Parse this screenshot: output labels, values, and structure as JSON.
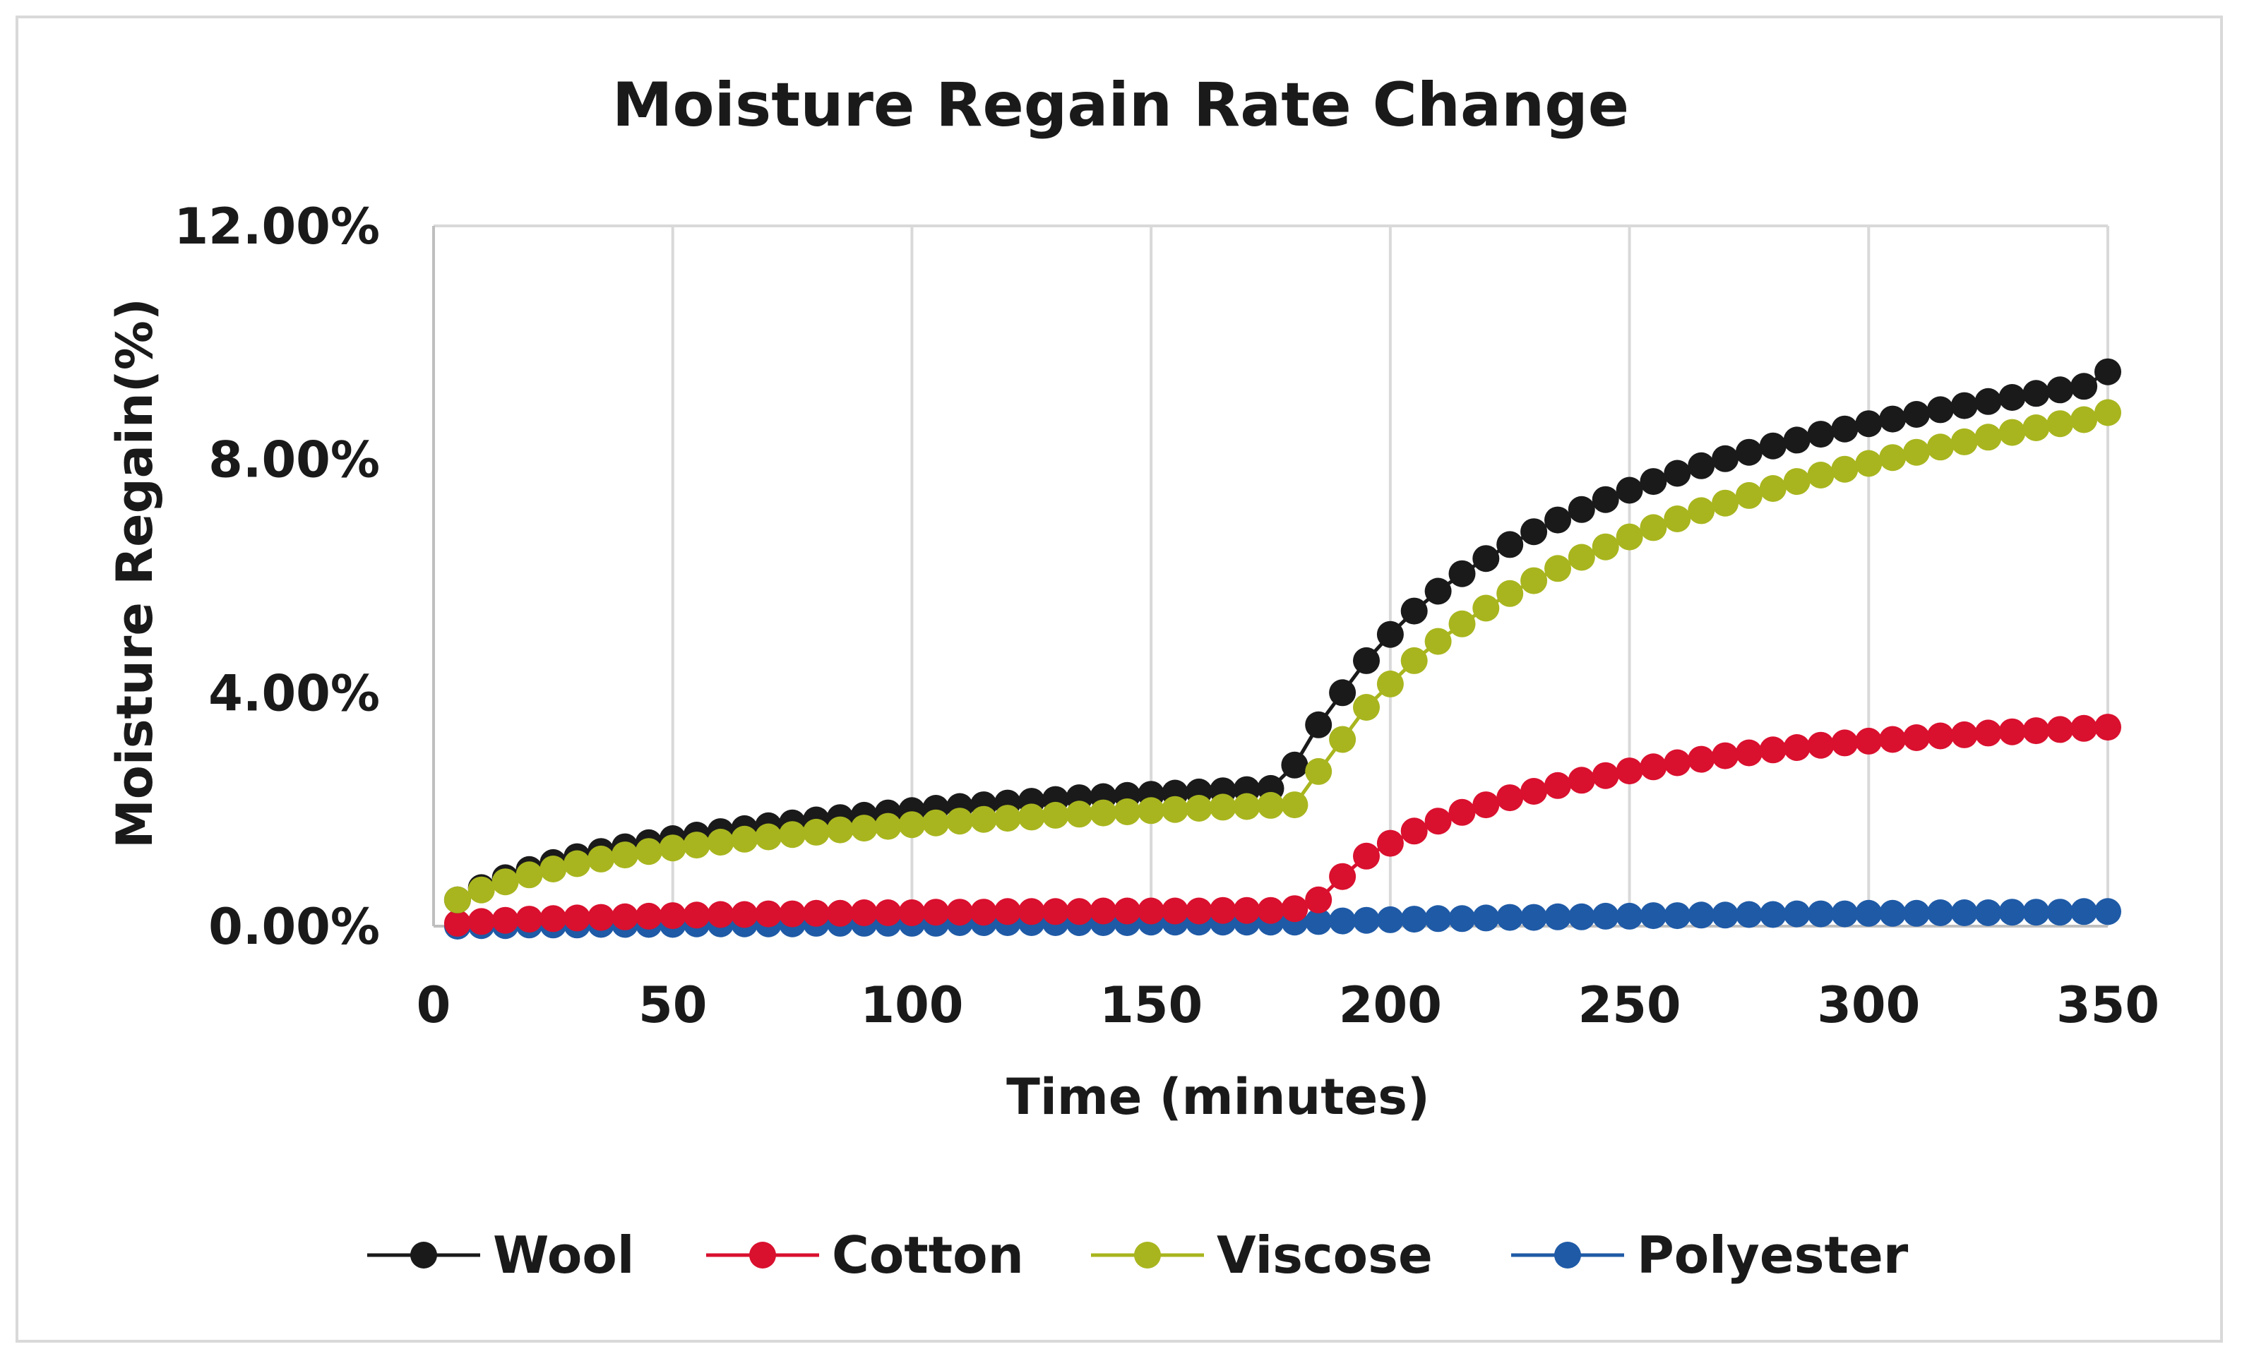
{
  "chart_data": {
    "type": "line",
    "title": "Moisture Regain Rate Change",
    "xlabel": "Time (minutes)",
    "ylabel": "Moisture Regain(%)",
    "xlim": [
      0,
      350
    ],
    "ylim": [
      0,
      0.12
    ],
    "x_ticks": [
      0,
      50,
      100,
      150,
      200,
      250,
      300,
      350
    ],
    "x_tick_labels": [
      "0",
      "50",
      "100",
      "150",
      "200",
      "250",
      "300",
      "350"
    ],
    "y_ticks": [
      0,
      0.04,
      0.08,
      0.12
    ],
    "y_tick_labels": [
      "0.00%",
      "4.00%",
      "8.00%",
      "12.00%"
    ],
    "grid": "vertical",
    "legend_position": "bottom",
    "x": [
      5,
      10,
      15,
      20,
      25,
      30,
      35,
      40,
      45,
      50,
      55,
      60,
      65,
      70,
      75,
      80,
      85,
      90,
      95,
      100,
      105,
      110,
      115,
      120,
      125,
      130,
      135,
      140,
      145,
      150,
      155,
      160,
      165,
      170,
      175,
      180,
      185,
      190,
      195,
      200,
      205,
      210,
      215,
      220,
      225,
      230,
      235,
      240,
      245,
      250,
      255,
      260,
      265,
      270,
      275,
      280,
      285,
      290,
      295,
      300,
      305,
      310,
      315,
      320,
      325,
      330,
      335,
      340,
      345,
      350
    ],
    "series": [
      {
        "name": "Wool",
        "color": "#1a1a1a",
        "values": [
          0.0045,
          0.0066,
          0.0083,
          0.0097,
          0.0109,
          0.0119,
          0.0128,
          0.0136,
          0.0143,
          0.015,
          0.0156,
          0.0162,
          0.0167,
          0.0172,
          0.0177,
          0.0182,
          0.0186,
          0.019,
          0.0194,
          0.0198,
          0.0202,
          0.0205,
          0.0208,
          0.0211,
          0.0214,
          0.0217,
          0.022,
          0.0222,
          0.0224,
          0.0226,
          0.0228,
          0.023,
          0.0232,
          0.0234,
          0.0236,
          0.0276,
          0.0345,
          0.04,
          0.0455,
          0.05,
          0.054,
          0.0574,
          0.0604,
          0.063,
          0.0654,
          0.0676,
          0.0696,
          0.0714,
          0.0731,
          0.0747,
          0.0762,
          0.0776,
          0.0789,
          0.0801,
          0.0812,
          0.0823,
          0.0833,
          0.0843,
          0.0852,
          0.0861,
          0.0869,
          0.0877,
          0.0885,
          0.0892,
          0.0899,
          0.0906,
          0.0913,
          0.0919,
          0.0925,
          0.095
        ]
      },
      {
        "name": "Cotton",
        "color": "#d9102e",
        "values": [
          0.0005,
          0.0008,
          0.001,
          0.0012,
          0.0013,
          0.0014,
          0.0015,
          0.0016,
          0.0017,
          0.0018,
          0.0019,
          0.002,
          0.002,
          0.0021,
          0.0021,
          0.0022,
          0.0022,
          0.0023,
          0.0023,
          0.0023,
          0.0024,
          0.0024,
          0.0024,
          0.0025,
          0.0025,
          0.0025,
          0.0025,
          0.0026,
          0.0026,
          0.0026,
          0.0026,
          0.0026,
          0.0027,
          0.0027,
          0.0027,
          0.003,
          0.0045,
          0.0085,
          0.012,
          0.0142,
          0.0163,
          0.018,
          0.0195,
          0.0208,
          0.022,
          0.0231,
          0.0241,
          0.025,
          0.0258,
          0.0266,
          0.0273,
          0.028,
          0.0286,
          0.0292,
          0.0297,
          0.0302,
          0.0306,
          0.031,
          0.0314,
          0.0317,
          0.032,
          0.0323,
          0.0326,
          0.0328,
          0.0331,
          0.0333,
          0.0335,
          0.0337,
          0.0339,
          0.0341
        ]
      },
      {
        "name": "Viscose",
        "color": "#a8b51e",
        "values": [
          0.0045,
          0.0062,
          0.0076,
          0.0088,
          0.0098,
          0.0107,
          0.0115,
          0.0122,
          0.0128,
          0.0134,
          0.0139,
          0.0144,
          0.0149,
          0.0153,
          0.0157,
          0.0161,
          0.0165,
          0.0168,
          0.0171,
          0.0174,
          0.0177,
          0.018,
          0.0183,
          0.0185,
          0.0187,
          0.019,
          0.0192,
          0.0194,
          0.0196,
          0.0198,
          0.02,
          0.0202,
          0.0204,
          0.0205,
          0.0207,
          0.0208,
          0.0265,
          0.032,
          0.0375,
          0.0415,
          0.0455,
          0.0488,
          0.0518,
          0.0545,
          0.057,
          0.0592,
          0.0613,
          0.0632,
          0.065,
          0.0667,
          0.0683,
          0.0698,
          0.0712,
          0.0725,
          0.0738,
          0.075,
          0.0762,
          0.0773,
          0.0783,
          0.0793,
          0.0803,
          0.0812,
          0.0821,
          0.083,
          0.0838,
          0.0846,
          0.0854,
          0.0861,
          0.0868,
          0.088
        ]
      },
      {
        "name": "Polyester",
        "color": "#1f5aa6",
        "values": [
          0.0,
          0.0001,
          0.0001,
          0.0002,
          0.0002,
          0.0002,
          0.0003,
          0.0003,
          0.0003,
          0.0003,
          0.0004,
          0.0004,
          0.0004,
          0.0004,
          0.0004,
          0.0005,
          0.0005,
          0.0005,
          0.0005,
          0.0005,
          0.0005,
          0.0006,
          0.0006,
          0.0006,
          0.0006,
          0.0006,
          0.0006,
          0.0006,
          0.0006,
          0.0007,
          0.0007,
          0.0007,
          0.0007,
          0.0007,
          0.0007,
          0.0007,
          0.0008,
          0.0009,
          0.001,
          0.0011,
          0.0012,
          0.0013,
          0.0013,
          0.0014,
          0.0015,
          0.0015,
          0.0016,
          0.0016,
          0.0017,
          0.0017,
          0.0018,
          0.0018,
          0.0019,
          0.0019,
          0.002,
          0.002,
          0.0021,
          0.0021,
          0.0021,
          0.0022,
          0.0022,
          0.0022,
          0.0023,
          0.0023,
          0.0023,
          0.0024,
          0.0024,
          0.0024,
          0.0025,
          0.0025
        ]
      }
    ]
  }
}
